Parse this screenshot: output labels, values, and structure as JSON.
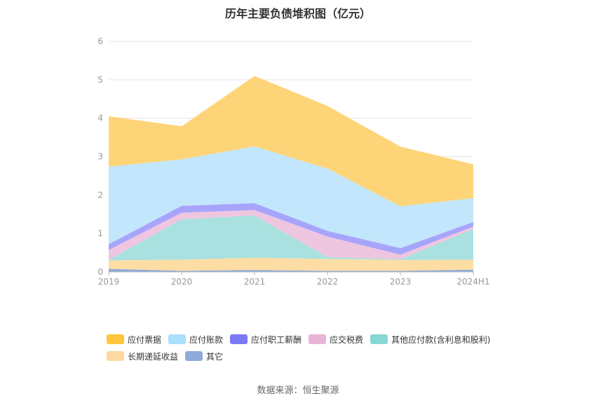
{
  "chart_data": {
    "type": "area",
    "stacked": true,
    "title": "历年主要负债堆积图（亿元）",
    "categories": [
      "2019",
      "2020",
      "2021",
      "2022",
      "2023",
      "2024H1"
    ],
    "ylim": [
      0,
      6
    ],
    "yticks": [
      "0",
      "1",
      "2",
      "3",
      "4",
      "5",
      "6"
    ],
    "grid": true,
    "legend_position": "bottom",
    "series": [
      {
        "name": "其它",
        "color": "#8eabd9",
        "values": [
          0.08,
          0.03,
          0.05,
          0.03,
          0.03,
          0.06
        ]
      },
      {
        "name": "长期递延收益",
        "color": "#fedda5",
        "values": [
          0.22,
          0.29,
          0.32,
          0.31,
          0.28,
          0.26
        ]
      },
      {
        "name": "其他应付款(含利息和股利)",
        "color": "#a8e1e0",
        "values": [
          0.02,
          1.05,
          1.1,
          0.05,
          0.02,
          0.8
        ]
      },
      {
        "name": "应交税费",
        "color": "#efc6e0",
        "values": [
          0.25,
          0.17,
          0.14,
          0.53,
          0.12,
          0.06
        ]
      },
      {
        "name": "应付职工薪酬",
        "color": "#a7a5fb",
        "values": [
          0.15,
          0.18,
          0.18,
          0.15,
          0.17,
          0.12
        ]
      },
      {
        "name": "应付账款",
        "color": "#c2e6fb",
        "values": [
          2.02,
          1.21,
          1.48,
          1.62,
          1.09,
          0.62
        ]
      },
      {
        "name": "应付票据",
        "color": "#fed478",
        "values": [
          1.31,
          0.86,
          1.83,
          1.63,
          1.55,
          0.88
        ]
      }
    ],
    "legend": [
      {
        "name": "应付票据",
        "color": "#fec53d"
      },
      {
        "name": "应付账款",
        "color": "#aadffb"
      },
      {
        "name": "应付职工薪酬",
        "color": "#7c79f4"
      },
      {
        "name": "应交税费",
        "color": "#e8b4d6"
      },
      {
        "name": "其他应付款(含利息和股利)",
        "color": "#87d7d6"
      },
      {
        "name": "长期递延收益",
        "color": "#fed8a0"
      },
      {
        "name": "其它",
        "color": "#8eabd9"
      }
    ]
  },
  "source_text": "数据来源：恒生聚源"
}
